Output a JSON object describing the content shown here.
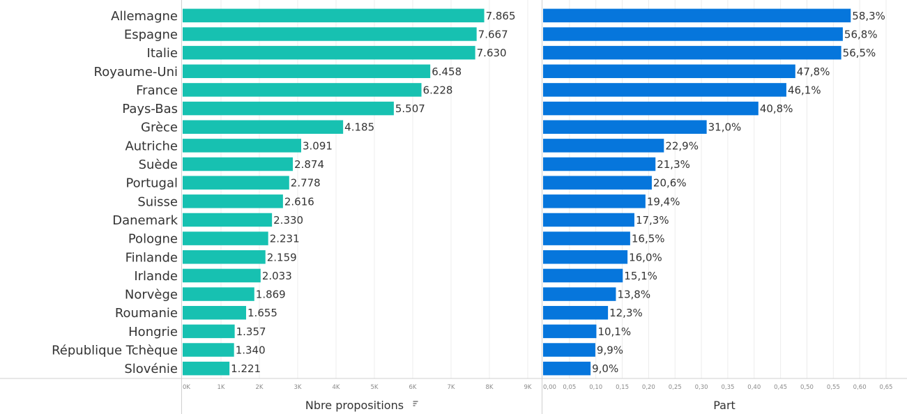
{
  "chart_data": {
    "type": "bar",
    "orientation": "horizontal",
    "categories": [
      "Allemagne",
      "Espagne",
      "Italie",
      "Royaume-Uni",
      "France",
      "Pays-Bas",
      "Grèce",
      "Autriche",
      "Suède",
      "Portugal",
      "Suisse",
      "Danemark",
      "Pologne",
      "Finlande",
      "Irlande",
      "Norvège",
      "Roumanie",
      "Hongrie",
      "République Tchèque",
      "Slovénie"
    ],
    "panels": [
      {
        "xlabel": "Nbre propositions",
        "sort_icon": "sort-descending-icon",
        "values": [
          7865,
          7667,
          7630,
          6458,
          6228,
          5507,
          4185,
          3091,
          2874,
          2778,
          2616,
          2330,
          2231,
          2159,
          2033,
          1869,
          1655,
          1357,
          1340,
          1221
        ],
        "value_labels": [
          "7.865",
          "7.667",
          "7.630",
          "6.458",
          "6.228",
          "5.507",
          "4.185",
          "3.091",
          "2.874",
          "2.778",
          "2.616",
          "2.330",
          "2.231",
          "2.159",
          "2.033",
          "1.869",
          "1.655",
          "1.357",
          "1.340",
          "1.221"
        ],
        "xlim": [
          0,
          9000
        ],
        "ticks": [
          0,
          1000,
          2000,
          3000,
          4000,
          5000,
          6000,
          7000,
          8000,
          9000
        ],
        "tick_labels": [
          "0K",
          "1K",
          "2K",
          "3K",
          "4K",
          "5K",
          "6K",
          "7K",
          "8K",
          "9K"
        ],
        "color": "#17c1b1"
      },
      {
        "xlabel": "Part",
        "values": [
          0.583,
          0.568,
          0.565,
          0.478,
          0.461,
          0.408,
          0.31,
          0.229,
          0.213,
          0.206,
          0.194,
          0.173,
          0.165,
          0.16,
          0.151,
          0.138,
          0.123,
          0.101,
          0.099,
          0.09
        ],
        "value_labels": [
          "58,3%",
          "56,8%",
          "56,5%",
          "47,8%",
          "46,1%",
          "40,8%",
          "31,0%",
          "22,9%",
          "21,3%",
          "20,6%",
          "19,4%",
          "17,3%",
          "16,5%",
          "16,0%",
          "15,1%",
          "13,8%",
          "12,3%",
          "10,1%",
          "9,9%",
          "9,0%"
        ],
        "xlim": [
          0,
          0.65
        ],
        "ticks": [
          0,
          0.05,
          0.1,
          0.15,
          0.2,
          0.25,
          0.3,
          0.35,
          0.4,
          0.45,
          0.5,
          0.55,
          0.6,
          0.65
        ],
        "tick_labels": [
          "0,00",
          "0,05",
          "0,10",
          "0,15",
          "0,20",
          "0,25",
          "0,30",
          "0,35",
          "0,40",
          "0,45",
          "0,50",
          "0,55",
          "0,60",
          "0,65"
        ],
        "color": "#0676dc"
      }
    ],
    "grid": true
  }
}
